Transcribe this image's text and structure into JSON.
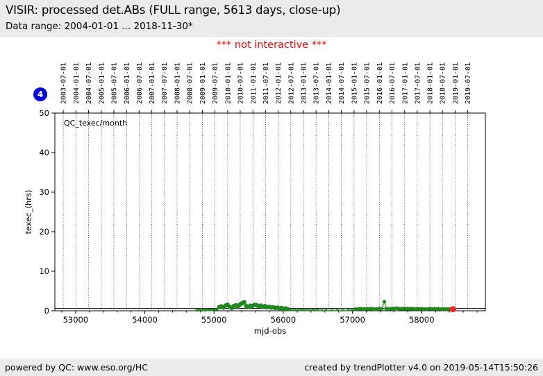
{
  "header": {
    "title": "VISIR: processed det.ABs (FULL range, 5613 days, close-up)",
    "data_range": "Data range: 2004-01-01 ... 2018-11-30*"
  },
  "banner": {
    "text": "*** not interactive ***"
  },
  "badge": {
    "label": "4"
  },
  "footer": {
    "left": "powered by QC: www.eso.org/HC",
    "right": "created by trendPlotter v4.0 on 2019-05-14T15:50:26"
  },
  "colors": {
    "banner_red": "#ff0000",
    "badge_blue": "#0000dd",
    "header_footer_bg": "#ebebeb",
    "point_green": "#1e871e",
    "line_green": "#54a054",
    "last_point_red": "#ff2020"
  },
  "chart_data": {
    "type": "line+scatter",
    "legend_label": "QC_texec/month",
    "xlabel": "mjd-obs",
    "ylabel": "texec_(hrs)",
    "xlim": [
      52700,
      58920
    ],
    "ylim": [
      0,
      50
    ],
    "y_ticks": [
      0,
      10,
      20,
      30,
      40,
      50
    ],
    "x_ticks": [
      53000,
      54000,
      55000,
      56000,
      57000,
      58000
    ],
    "x_minor_step": 200,
    "grid": "vertical-dotted-at-date-ticks",
    "reference_line_y": 0.6,
    "top_axis_dates": [
      {
        "mjd": 52821,
        "label": "2003-07-01"
      },
      {
        "mjd": 53005,
        "label": "2004-01-01"
      },
      {
        "mjd": 53187,
        "label": "2004-07-01"
      },
      {
        "mjd": 53371,
        "label": "2005-01-01"
      },
      {
        "mjd": 53552,
        "label": "2005-07-01"
      },
      {
        "mjd": 53736,
        "label": "2006-01-01"
      },
      {
        "mjd": 53917,
        "label": "2006-07-01"
      },
      {
        "mjd": 54101,
        "label": "2007-01-01"
      },
      {
        "mjd": 54282,
        "label": "2007-07-01"
      },
      {
        "mjd": 54466,
        "label": "2008-01-01"
      },
      {
        "mjd": 54648,
        "label": "2008-07-01"
      },
      {
        "mjd": 54832,
        "label": "2009-01-01"
      },
      {
        "mjd": 55013,
        "label": "2009-07-01"
      },
      {
        "mjd": 55197,
        "label": "2010-01-01"
      },
      {
        "mjd": 55378,
        "label": "2010-07-01"
      },
      {
        "mjd": 55562,
        "label": "2011-01-01"
      },
      {
        "mjd": 55743,
        "label": "2011-07-01"
      },
      {
        "mjd": 55927,
        "label": "2012-01-01"
      },
      {
        "mjd": 56109,
        "label": "2012-07-01"
      },
      {
        "mjd": 56293,
        "label": "2013-01-01"
      },
      {
        "mjd": 56474,
        "label": "2013-07-01"
      },
      {
        "mjd": 56658,
        "label": "2014-01-01"
      },
      {
        "mjd": 56839,
        "label": "2014-07-01"
      },
      {
        "mjd": 57023,
        "label": "2015-01-01"
      },
      {
        "mjd": 57204,
        "label": "2015-07-01"
      },
      {
        "mjd": 57388,
        "label": "2016-01-01"
      },
      {
        "mjd": 57570,
        "label": "2016-07-01"
      },
      {
        "mjd": 57754,
        "label": "2017-01-01"
      },
      {
        "mjd": 57935,
        "label": "2017-07-01"
      },
      {
        "mjd": 58119,
        "label": "2018-01-01"
      },
      {
        "mjd": 58300,
        "label": "2018-07-01"
      },
      {
        "mjd": 58484,
        "label": "2019-01-01"
      },
      {
        "mjd": 58665,
        "label": "2019-07-01"
      }
    ],
    "series": [
      {
        "name": "monthly-low-2008-2009",
        "marker": "dot",
        "r": 1.6,
        "color": "#1e871e",
        "points": [
          [
            54745,
            0.1
          ],
          [
            54760,
            0.12
          ],
          [
            54775,
            0.1
          ],
          [
            54790,
            0.15
          ],
          [
            54805,
            0.12
          ],
          [
            54820,
            0.1
          ],
          [
            54835,
            0.15
          ],
          [
            54850,
            0.12
          ],
          [
            54865,
            0.15
          ],
          [
            54880,
            0.18
          ],
          [
            54895,
            0.15
          ],
          [
            54910,
            0.2
          ],
          [
            54925,
            0.18
          ],
          [
            54940,
            0.2
          ],
          [
            54955,
            0.22
          ],
          [
            54970,
            0.2
          ],
          [
            54985,
            0.25
          ],
          [
            55000,
            0.28
          ],
          [
            55015,
            0.3
          ],
          [
            55030,
            0.32
          ],
          [
            55045,
            0.35
          ]
        ]
      },
      {
        "name": "monthly-2010-2012-cluster",
        "marker": "dot",
        "r": 3.2,
        "color": "#1e871e",
        "points": [
          [
            55075,
            0.9
          ],
          [
            55105,
            1.1
          ],
          [
            55135,
            0.8
          ],
          [
            55165,
            1.3
          ],
          [
            55195,
            1.5
          ],
          [
            55225,
            1.0
          ],
          [
            55255,
            0.7
          ],
          [
            55285,
            1.2
          ],
          [
            55315,
            1.4
          ],
          [
            55345,
            1.1
          ],
          [
            55375,
            1.6
          ],
          [
            55405,
            1.9
          ],
          [
            55435,
            2.2
          ],
          [
            55465,
            1.2
          ],
          [
            55495,
            1.0
          ],
          [
            55525,
            1.3
          ],
          [
            55555,
            1.2
          ],
          [
            55585,
            1.5
          ],
          [
            55615,
            1.4
          ],
          [
            55645,
            1.1
          ],
          [
            55675,
            1.3
          ],
          [
            55705,
            1.0
          ],
          [
            55735,
            1.2
          ],
          [
            55765,
            0.9
          ],
          [
            55795,
            1.0
          ],
          [
            55825,
            0.8
          ],
          [
            55855,
            0.9
          ],
          [
            55885,
            0.7
          ],
          [
            55915,
            0.8
          ],
          [
            55945,
            0.6
          ],
          [
            55975,
            0.7
          ],
          [
            56005,
            0.5
          ],
          [
            56035,
            0.6
          ],
          [
            56065,
            0.4
          ]
        ]
      },
      {
        "name": "monthly-low-2012-2014",
        "marker": "dot",
        "r": 1.6,
        "color": "#1e871e",
        "points": [
          [
            56100,
            0.2
          ],
          [
            56140,
            0.15
          ],
          [
            56180,
            0.2
          ],
          [
            56220,
            0.15
          ],
          [
            56260,
            0.2
          ],
          [
            56300,
            0.15
          ],
          [
            56340,
            0.18
          ],
          [
            56380,
            0.15
          ],
          [
            56420,
            0.2
          ],
          [
            56460,
            0.15
          ],
          [
            56500,
            0.18
          ],
          [
            56560,
            0.12
          ],
          [
            56620,
            0.15
          ],
          [
            56700,
            0.12
          ],
          [
            56780,
            0.15
          ],
          [
            56860,
            0.12
          ],
          [
            56940,
            0.15
          ]
        ]
      },
      {
        "name": "monthly-2015-2018",
        "marker": "dot",
        "r": 2.7,
        "color": "#1e871e",
        "points": [
          [
            57030,
            0.35
          ],
          [
            57060,
            0.4
          ],
          [
            57090,
            0.45
          ],
          [
            57120,
            0.5
          ],
          [
            57150,
            0.45
          ],
          [
            57180,
            0.4
          ],
          [
            57210,
            0.5
          ],
          [
            57240,
            0.45
          ],
          [
            57270,
            0.55
          ],
          [
            57300,
            0.45
          ],
          [
            57330,
            0.4
          ],
          [
            57360,
            0.45
          ],
          [
            57390,
            0.5
          ],
          [
            57420,
            0.45
          ],
          [
            57460,
            2.3
          ],
          [
            57490,
            0.5
          ],
          [
            57520,
            0.45
          ],
          [
            57550,
            0.5
          ],
          [
            57580,
            0.55
          ],
          [
            57610,
            0.6
          ],
          [
            57640,
            0.65
          ],
          [
            57670,
            0.55
          ],
          [
            57700,
            0.5
          ],
          [
            57730,
            0.55
          ],
          [
            57760,
            0.5
          ],
          [
            57790,
            0.55
          ],
          [
            57820,
            0.5
          ],
          [
            57850,
            0.55
          ],
          [
            57880,
            0.5
          ],
          [
            57910,
            0.45
          ],
          [
            57940,
            0.5
          ],
          [
            57970,
            0.45
          ],
          [
            58000,
            0.5
          ],
          [
            58030,
            0.45
          ],
          [
            58060,
            0.4
          ],
          [
            58090,
            0.45
          ],
          [
            58120,
            0.5
          ],
          [
            58150,
            0.45
          ],
          [
            58180,
            0.5
          ],
          [
            58210,
            0.45
          ],
          [
            58240,
            0.5
          ],
          [
            58270,
            0.45
          ],
          [
            58300,
            0.4
          ],
          [
            58330,
            0.45
          ],
          [
            58360,
            0.4
          ],
          [
            58390,
            0.45
          ],
          [
            58420,
            0.4
          ]
        ]
      },
      {
        "name": "last-point",
        "marker": "dot",
        "r": 4.5,
        "color": "#ff2020",
        "points": [
          [
            58451,
            0.4
          ]
        ]
      }
    ]
  }
}
